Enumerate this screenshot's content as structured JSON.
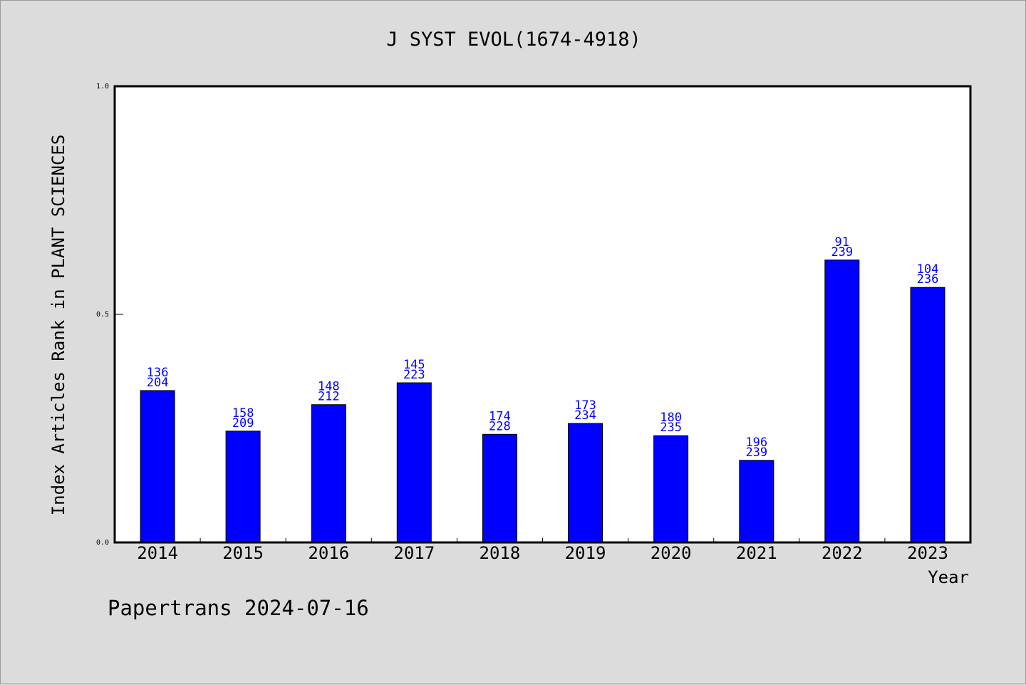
{
  "title": "J SYST EVOL(1674-4918)",
  "footer": "Papertrans 2024-07-16",
  "chart_data": {
    "type": "bar",
    "title": "J SYST EVOL(1674-4918)",
    "xlabel": "Year",
    "ylabel": "Index Articles Rank in PLANT SCIENCES",
    "ylim": [
      0,
      1.0
    ],
    "y_ticks": [
      {
        "value": 0.0,
        "label": "0.0"
      },
      {
        "value": 0.5,
        "label": "0.5"
      },
      {
        "value": 1.0,
        "label": "1.0"
      }
    ],
    "categories": [
      "2014",
      "2015",
      "2016",
      "2017",
      "2018",
      "2019",
      "2020",
      "2021",
      "2022",
      "2023"
    ],
    "rank": [
      136,
      158,
      148,
      145,
      174,
      173,
      180,
      196,
      91,
      104
    ],
    "total": [
      204,
      209,
      212,
      223,
      228,
      234,
      235,
      239,
      239,
      236
    ],
    "values": [
      0.333,
      0.244,
      0.302,
      0.35,
      0.237,
      0.261,
      0.234,
      0.18,
      0.619,
      0.559
    ],
    "bar_color": "#0000ff",
    "label_color": "#0000ff",
    "grid": false,
    "legend": "none"
  }
}
